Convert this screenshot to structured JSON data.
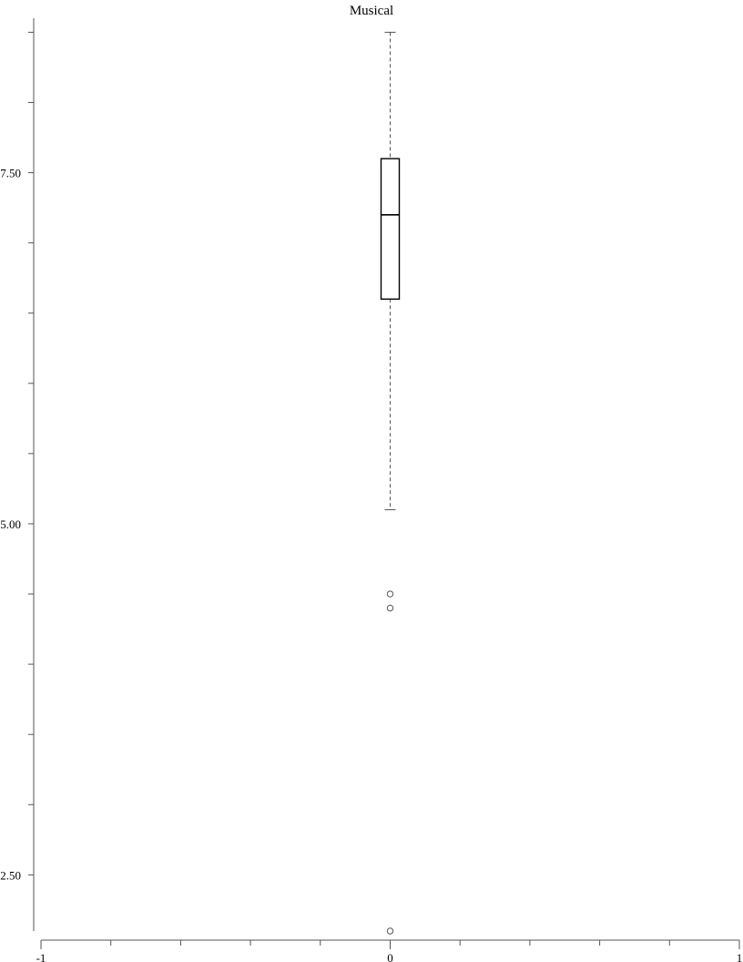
{
  "chart_data": {
    "type": "box",
    "title": "Musical",
    "xlabel": "",
    "ylabel": "",
    "xlim": [
      -1,
      1
    ],
    "ylim": [
      2.1,
      8.6
    ],
    "x_ticks_major": [
      -1,
      0,
      1
    ],
    "x_tick_labels": [
      "-1",
      "0",
      "1"
    ],
    "x_ticks_minor_step": 0.2,
    "y_ticks_major": [
      2.5,
      5.0,
      7.5
    ],
    "y_tick_labels": [
      "2.50",
      "5.00",
      "7.50"
    ],
    "y_ticks_minor_step": 0.5,
    "box": {
      "x": 0,
      "whisker_low": 5.1,
      "q1": 6.6,
      "median": 7.2,
      "q3": 7.6,
      "whisker_high": 8.5
    },
    "outliers": [
      4.5,
      4.4,
      2.1
    ]
  },
  "colors": {
    "box_stroke": "#000000",
    "whisker": "#555555",
    "axis": "#555555"
  }
}
